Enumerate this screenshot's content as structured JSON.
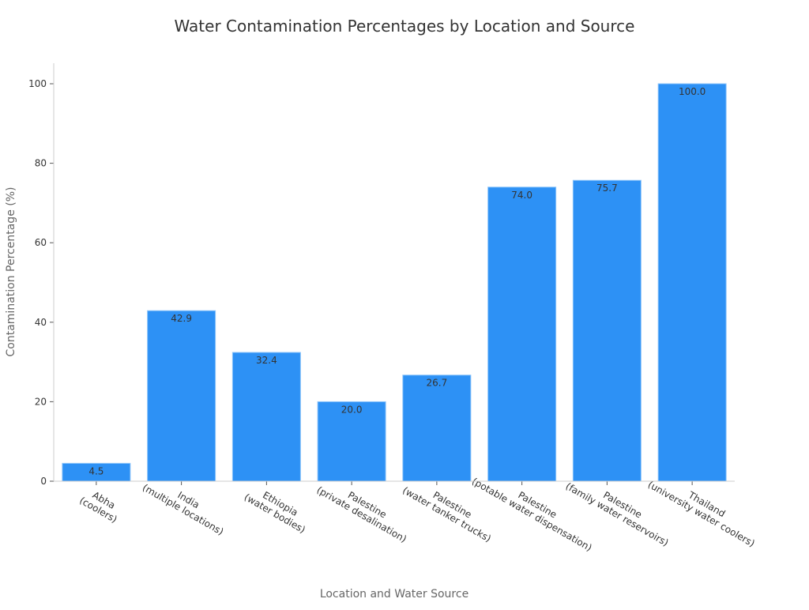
{
  "chart_data": {
    "type": "bar",
    "title": "Water Contamination Percentages by Location and Source",
    "xlabel": "Location and Water Source",
    "ylabel": "Contamination Percentage (%)",
    "categories": [
      [
        "Abha",
        "(coolers)"
      ],
      [
        "India",
        "(multiple locations)"
      ],
      [
        "Ethiopia",
        "(water bodies)"
      ],
      [
        "Palestine",
        "(private desalination)"
      ],
      [
        "Palestine",
        "(water tanker trucks)"
      ],
      [
        "Palestine",
        "(potable water dispensation)"
      ],
      [
        "Palestine",
        "(family water reservoirs)"
      ],
      [
        "Thailand",
        "(university water coolers)"
      ]
    ],
    "values": [
      4.5,
      42.9,
      32.4,
      20.0,
      26.7,
      74.0,
      75.7,
      100.0
    ],
    "data_labels": [
      "4.5",
      "42.9",
      "32.4",
      "20.0",
      "26.7",
      "74.0",
      "75.7",
      "100.0"
    ],
    "yticks": [
      0,
      20,
      40,
      60,
      80,
      100
    ],
    "ylim": [
      0,
      105
    ],
    "grid": false,
    "bar_color": "#2d91f5",
    "bar_edge_color": "#8cc4fa"
  }
}
